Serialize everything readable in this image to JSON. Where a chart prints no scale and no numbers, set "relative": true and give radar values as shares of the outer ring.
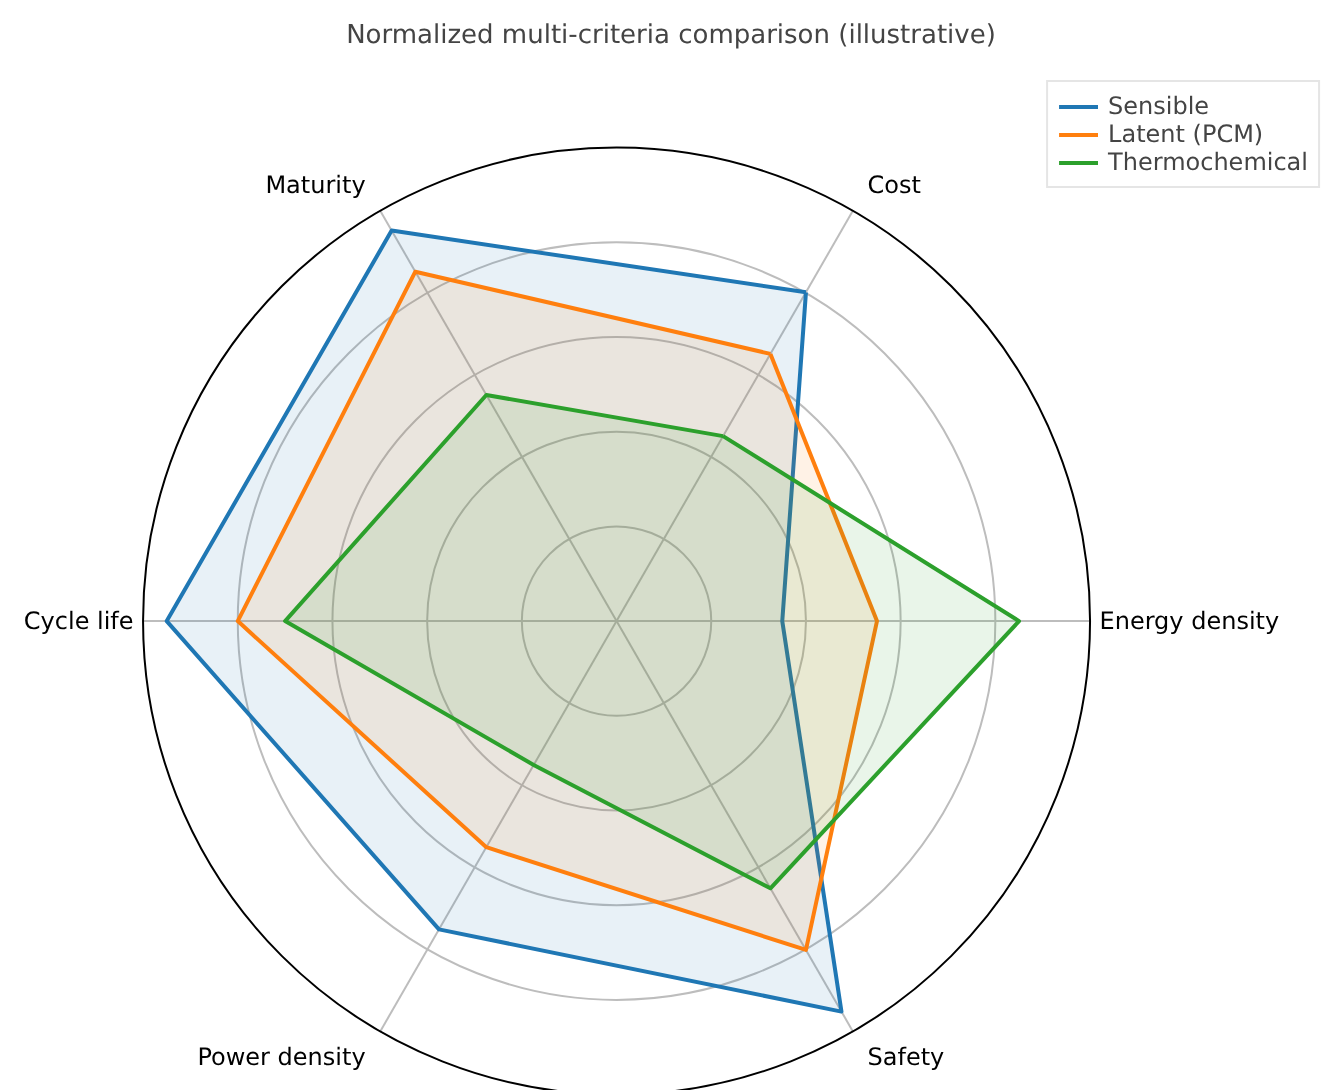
{
  "chart_data": {
    "type": "radar",
    "title": "Normalized multi-criteria comparison (illustrative)",
    "relative": true,
    "categories": [
      "Cost",
      "Energy density",
      "Safety",
      "Power density",
      "Cycle life",
      "Maturity"
    ],
    "series": [
      {
        "name": "Sensible",
        "color": "#1f77b4",
        "values": [
          0.8,
          0.35,
          0.95,
          0.75,
          0.95,
          0.95
        ]
      },
      {
        "name": "Latent (PCM)",
        "color": "#ff7f0e",
        "values": [
          0.65,
          0.55,
          0.8,
          0.55,
          0.8,
          0.85
        ]
      },
      {
        "name": "Thermochemical",
        "color": "#2ca02c",
        "values": [
          0.45,
          0.85,
          0.65,
          0.35,
          0.7,
          0.55
        ]
      }
    ],
    "grid": true,
    "legend": "top right"
  }
}
